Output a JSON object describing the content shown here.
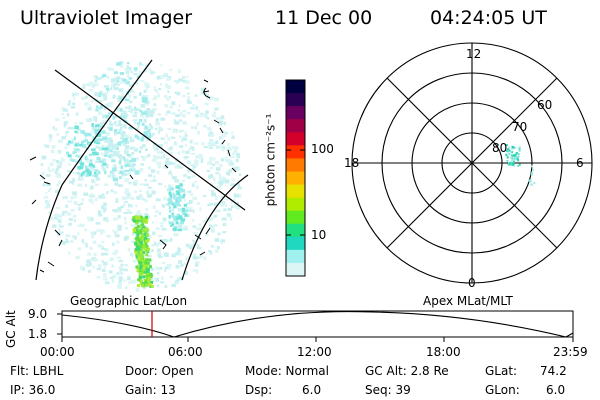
{
  "header": {
    "instrument": "Ultraviolet Imager",
    "date": "11 Dec 00",
    "time": "04:24:05 UT"
  },
  "colorbar": {
    "unit_label": "photon cm⁻²s⁻¹",
    "tick_labels": [
      "100",
      "10"
    ],
    "colors": [
      "#000040",
      "#2a0055",
      "#6a0060",
      "#a00045",
      "#d2002a",
      "#ff3000",
      "#ff7a00",
      "#ffb000",
      "#e8e000",
      "#b0ec00",
      "#60ea20",
      "#20e080",
      "#20d8c0",
      "#a0f0f0",
      "#dcf6f6"
    ]
  },
  "polar_plot": {
    "mlt_labels": {
      "top": "12",
      "left": "18",
      "right": "6",
      "bottom": "0"
    },
    "lat_labels": [
      "60",
      "70",
      "80"
    ]
  },
  "geo_panel_title": "Geographic Lat/Lon",
  "apex_panel_title": "Apex MLat/MLT",
  "altitude_plot": {
    "y_label": "GC Alt",
    "y_ticks": [
      "9.0",
      "1.8"
    ],
    "x_ticks": [
      "00:00",
      "06:00",
      "12:00",
      "18:00",
      "23:59"
    ],
    "current_time_marker": "04:24"
  },
  "status": {
    "filter": "Flt: LBHL",
    "ip": "IP: 36.0",
    "door": "Door: Open",
    "gain": "Gain: 13",
    "mode": "Mode: Normal",
    "dsp_label": "Dsp:",
    "dsp_value": "6.0",
    "gc_alt": "GC Alt: 2.8 Re",
    "seq": "Seq: 39",
    "glat_label": "GLat:",
    "glat_value": "74.2",
    "glon_label": "GLon:",
    "glon_value": "6.0"
  },
  "colors": {
    "accent_marker": "#cc0000",
    "background": "#ffffff"
  }
}
